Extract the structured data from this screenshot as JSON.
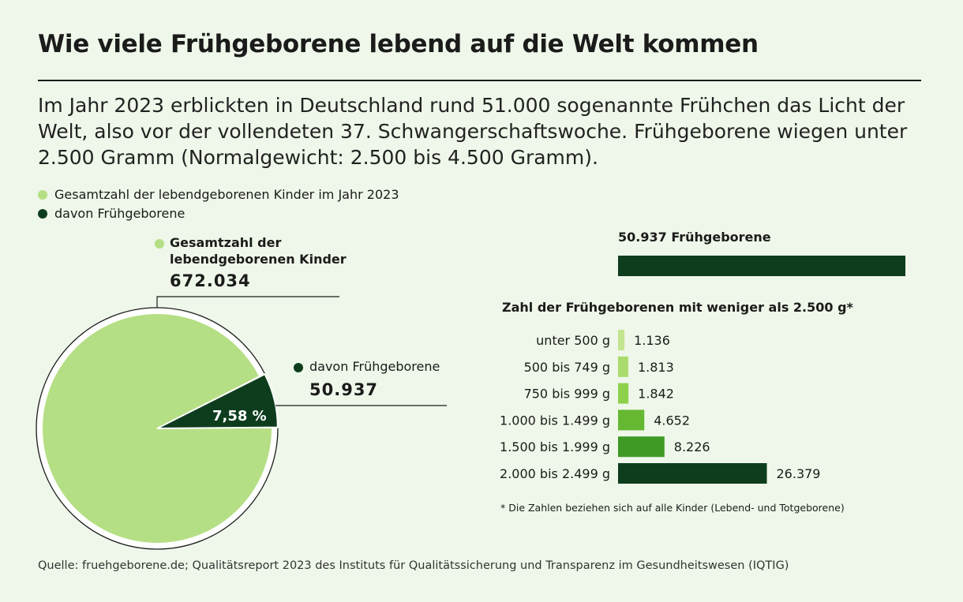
{
  "title": "Wie viele Frühgeborene lebend auf die Welt kommen",
  "intro": "Im Jahr 2023 erblickten in Deutschland rund 51.000 sogenannte Frühchen das Licht der Welt, also vor der vollendeten 37. Schwangerschaftswoche. Frühgeborene wiegen unter 2.500 Gramm (Normalgewicht: 2.500 bis 4.500 Gramm).",
  "legend": {
    "total": "Gesamtzahl der lebendgeborenen Kinder im Jahr 2023",
    "preterm": "davon Frühgeborene"
  },
  "colors": {
    "background": "#eef7e9",
    "light_green": "#b5df84",
    "dark_green": "#0d3d1d"
  },
  "chart_data": [
    {
      "type": "pie",
      "slices": [
        {
          "label": "Gesamtzahl der lebendgeborenen Kinder",
          "value": 672034,
          "color": "#b5df84"
        },
        {
          "label": "davon Frühgeborene",
          "value": 50937,
          "color": "#0d3d1d",
          "percent_label": "7,58 %"
        }
      ],
      "labels": {
        "total_line1": "Gesamtzahl der",
        "total_line2": "lebendgeborenen Kinder",
        "total_value": "672.034",
        "preterm": "davon Frühgeborene",
        "preterm_value": "50.937",
        "percent": "7,58 %"
      }
    },
    {
      "type": "bar",
      "orientation": "horizontal",
      "total_label": "50.937 Frühgeborene",
      "total_value": 50937,
      "title": "Zahl der Frühgeborenen mit weniger als 2.500 g*",
      "categories": [
        "unter 500 g",
        "500 bis 749 g",
        "750 bis 999 g",
        "1.000 bis 1.499 g",
        "1.500 bis 1.999 g",
        "2.000 bis 2.499 g"
      ],
      "values": [
        1136,
        1813,
        1842,
        4652,
        8226,
        26379
      ],
      "value_labels": [
        "1.136",
        "1.813",
        "1.842",
        "4.652",
        "8.226",
        "26.379"
      ],
      "colors": [
        "#c3e590",
        "#a9dc6c",
        "#8ed04c",
        "#66b832",
        "#3f9a25",
        "#0d3d1d"
      ],
      "footnote": "* Die Zahlen beziehen sich auf alle Kinder (Lebend- und Totgeborene)"
    }
  ],
  "source": "Quelle: fruehgeborene.de; Qualitätsreport 2023 des Instituts für Qualitätssicherung und Transparenz im Gesundheitswesen (IQTIG)"
}
